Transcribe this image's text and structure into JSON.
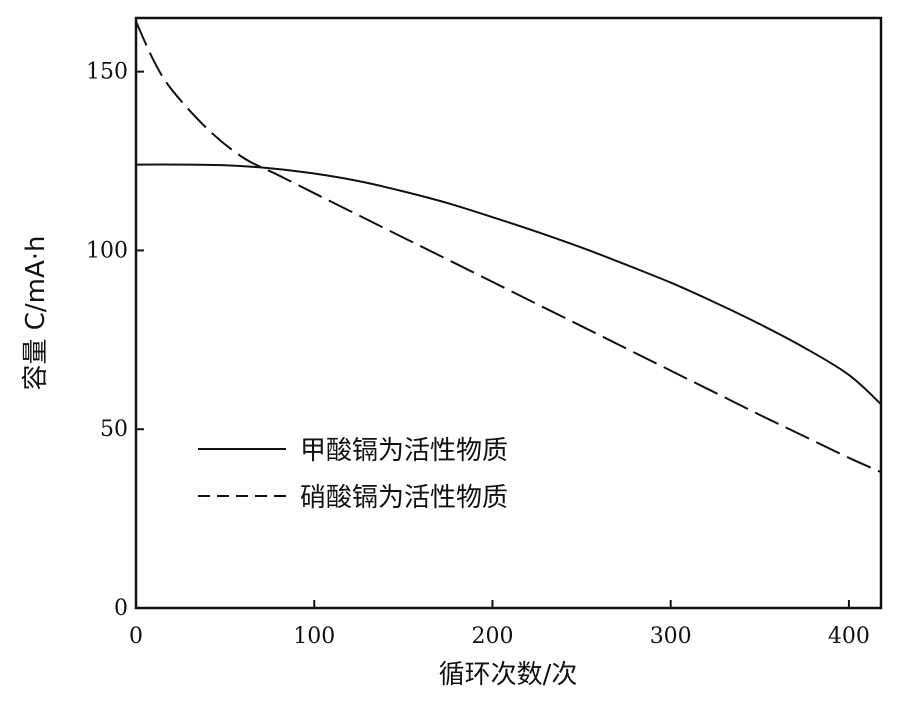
{
  "chart_data": {
    "type": "line",
    "title": "",
    "xlabel": "循环次数/次",
    "ylabel": "容量 C/mA·h",
    "xlim": [
      0,
      418
    ],
    "ylim": [
      0,
      165
    ],
    "xticks": [
      0,
      100,
      200,
      300,
      400
    ],
    "yticks": [
      0,
      50,
      100,
      150
    ],
    "grid": false,
    "legend_position": "lower-left",
    "series": [
      {
        "name": "甲酸镉为活性物质",
        "style": "solid",
        "x": [
          0,
          25,
          50,
          75,
          100,
          125,
          150,
          175,
          200,
          225,
          250,
          275,
          300,
          325,
          350,
          375,
          400,
          418
        ],
        "y": [
          124,
          124,
          123.8,
          123,
          121.5,
          119.4,
          116.5,
          113.2,
          109.3,
          105.2,
          100.8,
          96,
          91,
          85.4,
          79.4,
          72.8,
          65.2,
          57
        ]
      },
      {
        "name": "硝酸镉为活性物质",
        "style": "dashed",
        "x": [
          0,
          10,
          20,
          40,
          60,
          80,
          100,
          125,
          150,
          175,
          200,
          225,
          250,
          275,
          300,
          325,
          350,
          375,
          400,
          418
        ],
        "y": [
          164,
          153,
          145,
          134,
          126,
          121,
          116,
          109.8,
          103.6,
          97.4,
          91.2,
          85,
          78.8,
          72.6,
          66.4,
          60.2,
          54,
          48,
          42,
          38
        ]
      }
    ]
  }
}
